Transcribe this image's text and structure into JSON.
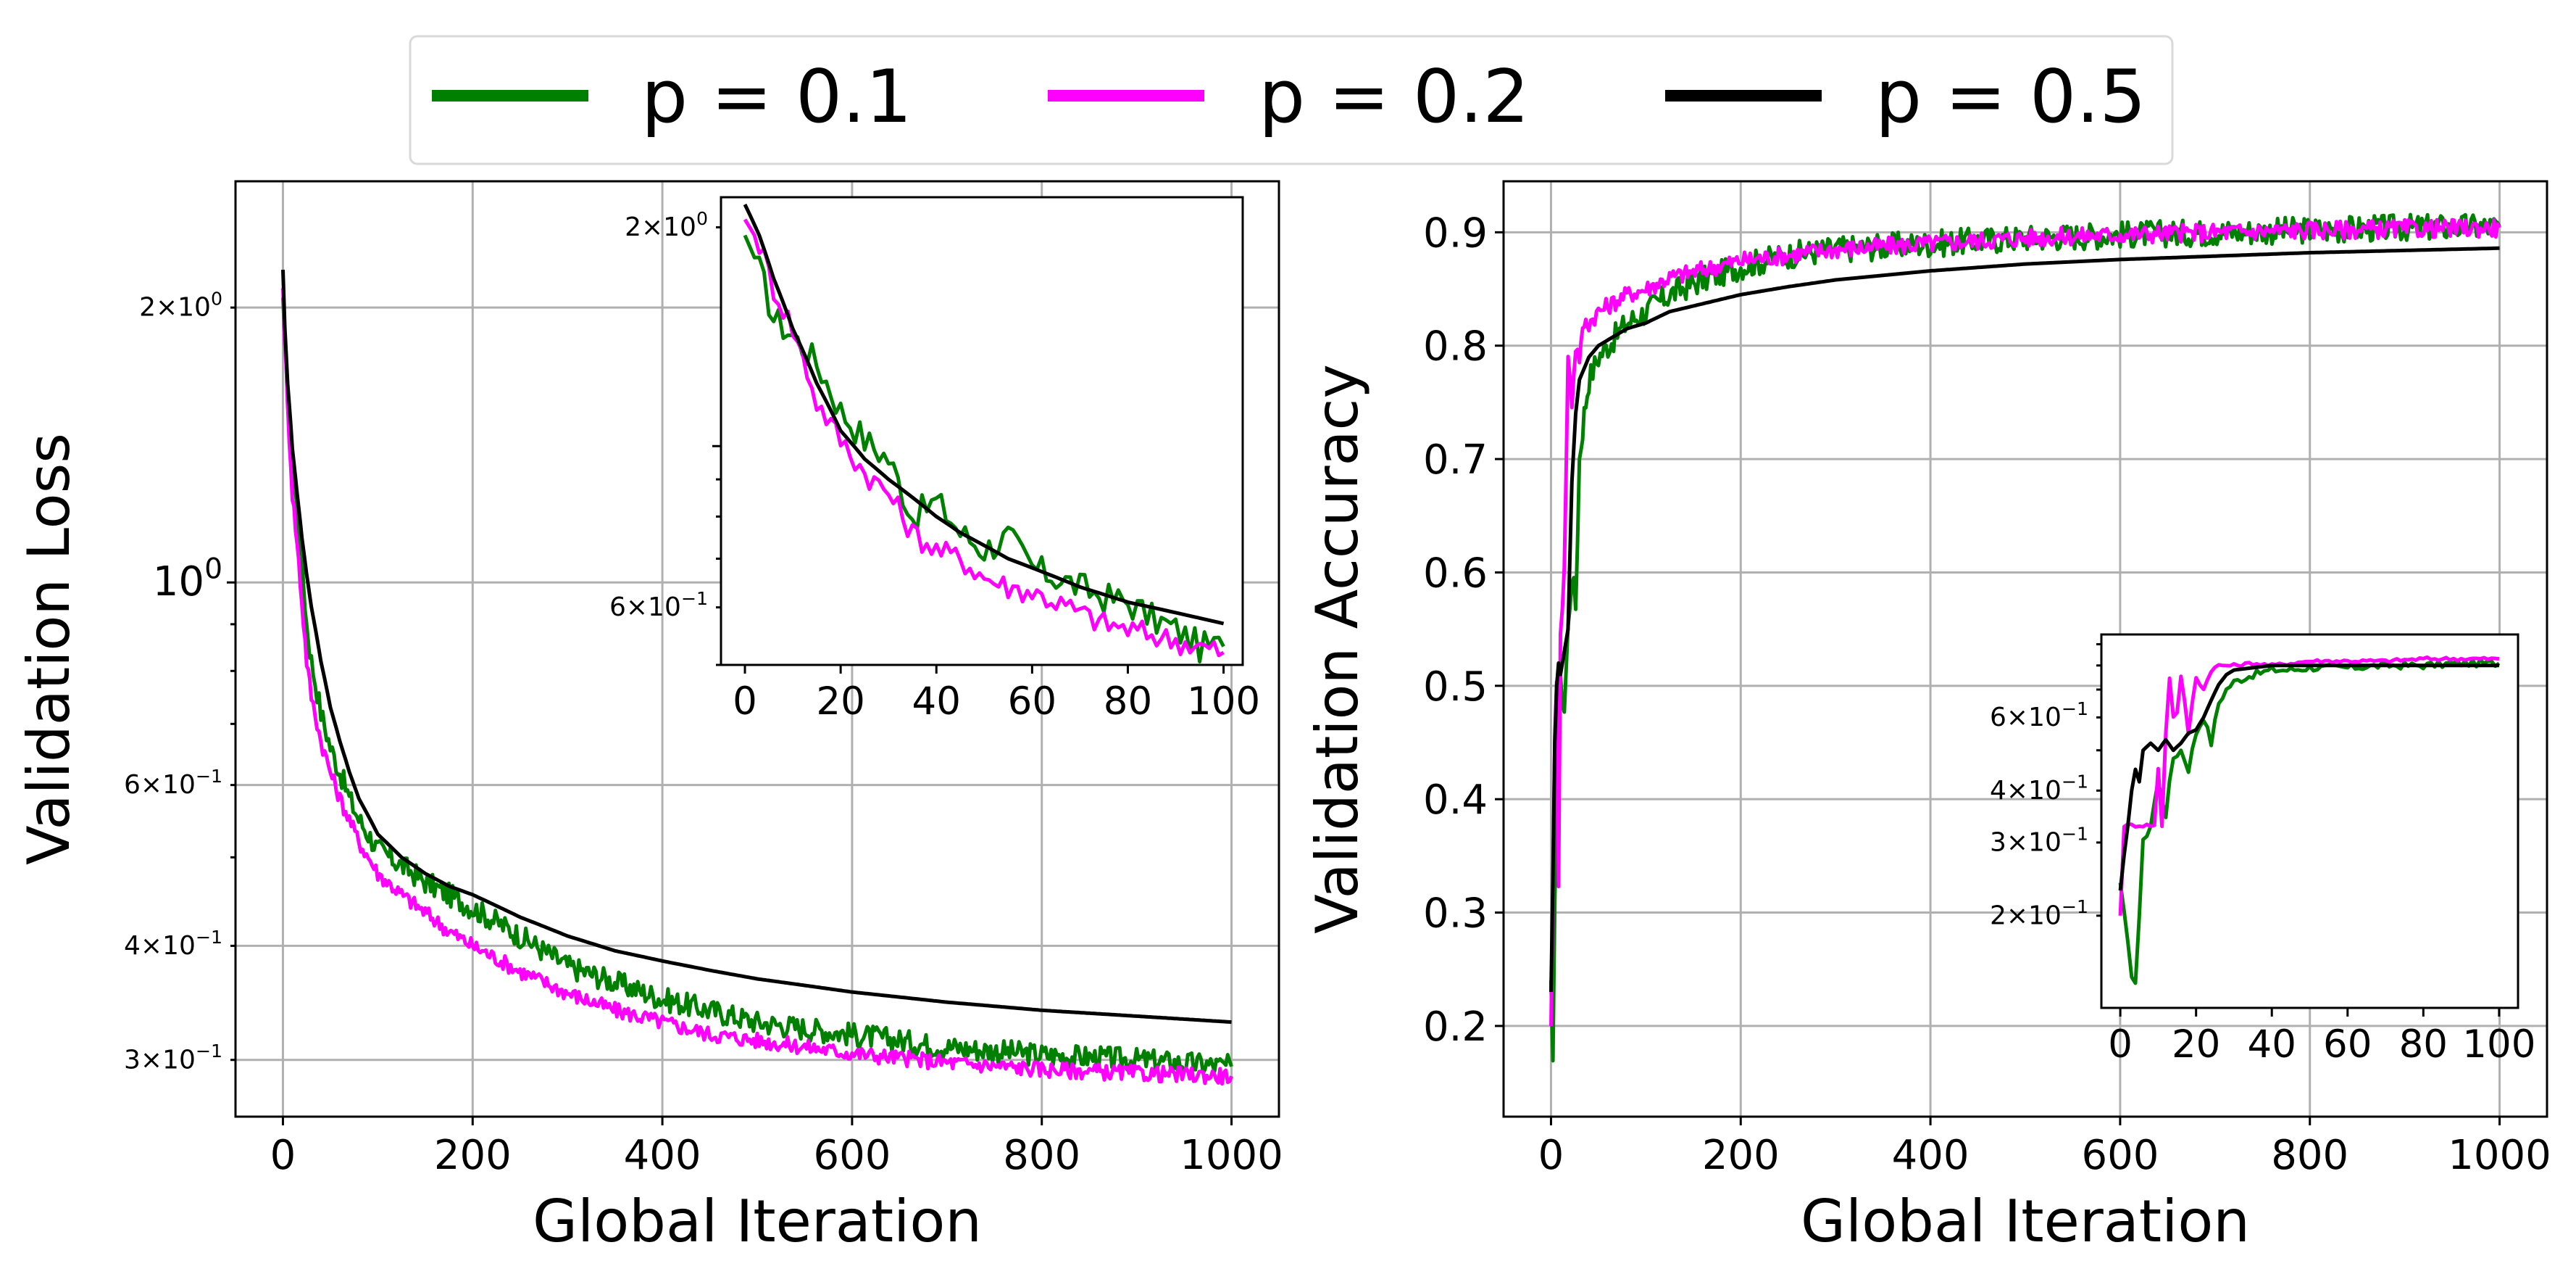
{
  "colors": {
    "p01": "#008000",
    "p02": "#ff00ff",
    "p05": "#000000",
    "grid": "#b0b0b0"
  },
  "legend": [
    {
      "label": "p = 0.1",
      "color": "#008000"
    },
    {
      "label": "p = 0.2",
      "color": "#ff00ff"
    },
    {
      "label": "p = 0.5",
      "color": "#000000"
    }
  ],
  "chart_data": [
    {
      "id": "loss",
      "type": "line",
      "xlabel": "Global Iteration",
      "ylabel": "Validation Loss",
      "yscale": "log",
      "xlim": [
        -50,
        1050
      ],
      "ylim": [
        0.26,
        2.75
      ],
      "xticks": [
        0,
        200,
        400,
        600,
        800,
        1000
      ],
      "xtick_labels": [
        "0",
        "200",
        "400",
        "600",
        "800",
        "1000"
      ],
      "yticks": [
        {
          "value": 2.0,
          "mant": "2",
          "exp": "0",
          "big": false
        },
        {
          "value": 1.0,
          "mant": "",
          "exp": "0",
          "big": true
        },
        {
          "value": 0.6,
          "mant": "6",
          "exp": "−1",
          "big": false
        },
        {
          "value": 0.4,
          "mant": "4",
          "exp": "−1",
          "big": false
        },
        {
          "value": 0.3,
          "mant": "3",
          "exp": "−1",
          "big": false
        }
      ],
      "series": [
        {
          "name": "p = 0.1",
          "color": "#008000",
          "x": [
            0,
            2,
            5,
            10,
            15,
            20,
            25,
            30,
            40,
            50,
            60,
            70,
            80,
            100,
            125,
            150,
            175,
            200,
            250,
            300,
            350,
            400,
            450,
            500,
            600,
            700,
            800,
            900,
            1000
          ],
          "y": [
            2.05,
            1.8,
            1.6,
            1.35,
            1.2,
            1.05,
            0.9,
            0.82,
            0.72,
            0.66,
            0.62,
            0.58,
            0.55,
            0.51,
            0.49,
            0.47,
            0.455,
            0.44,
            0.41,
            0.38,
            0.365,
            0.35,
            0.34,
            0.33,
            0.32,
            0.31,
            0.304,
            0.3,
            0.295
          ],
          "noise": 0.03
        },
        {
          "name": "p = 0.2",
          "color": "#ff00ff",
          "x": [
            0,
            2,
            5,
            10,
            15,
            20,
            25,
            30,
            40,
            50,
            60,
            70,
            80,
            100,
            125,
            150,
            175,
            200,
            250,
            300,
            350,
            400,
            450,
            500,
            600,
            700,
            800,
            900,
            1000
          ],
          "y": [
            2.1,
            1.85,
            1.55,
            1.25,
            1.1,
            0.95,
            0.82,
            0.75,
            0.67,
            0.62,
            0.58,
            0.55,
            0.52,
            0.48,
            0.455,
            0.435,
            0.415,
            0.4,
            0.375,
            0.355,
            0.34,
            0.33,
            0.32,
            0.315,
            0.305,
            0.298,
            0.293,
            0.29,
            0.288
          ],
          "noise": 0.02
        },
        {
          "name": "p = 0.5",
          "color": "#000000",
          "x": [
            0,
            2,
            5,
            10,
            15,
            20,
            25,
            30,
            40,
            50,
            60,
            70,
            80,
            100,
            125,
            150,
            175,
            200,
            250,
            300,
            350,
            400,
            450,
            500,
            600,
            700,
            800,
            900,
            1000
          ],
          "y": [
            2.2,
            1.9,
            1.65,
            1.4,
            1.25,
            1.12,
            1.02,
            0.94,
            0.82,
            0.73,
            0.67,
            0.62,
            0.58,
            0.53,
            0.5,
            0.48,
            0.465,
            0.455,
            0.43,
            0.41,
            0.395,
            0.385,
            0.376,
            0.368,
            0.356,
            0.347,
            0.34,
            0.335,
            0.33
          ],
          "noise": 0
        }
      ]
    },
    {
      "id": "loss-inset",
      "type": "line",
      "yscale": "log",
      "xlim": [
        -5,
        104
      ],
      "ylim": [
        0.5,
        2.2
      ],
      "xticks": [
        0,
        20,
        40,
        60,
        80,
        100
      ],
      "xtick_labels": [
        "0",
        "20",
        "40",
        "60",
        "80",
        "100"
      ],
      "yticks": [
        {
          "value": 2.0,
          "mant": "2",
          "exp": "0",
          "big": false
        },
        {
          "value": 0.6,
          "mant": "6",
          "exp": "−1",
          "big": false
        }
      ],
      "series": [
        {
          "name": "p = 0.1",
          "color": "#008000",
          "x": [
            0,
            3,
            6,
            10,
            15,
            20,
            25,
            30,
            35,
            40,
            45,
            50,
            55,
            60,
            65,
            70,
            75,
            80,
            85,
            90,
            95,
            100
          ],
          "y": [
            1.95,
            1.75,
            1.5,
            1.42,
            1.3,
            1.12,
            1.02,
            0.96,
            0.8,
            0.84,
            0.76,
            0.72,
            0.75,
            0.68,
            0.66,
            0.64,
            0.62,
            0.61,
            0.58,
            0.56,
            0.53,
            0.53
          ],
          "noise": 0.05
        },
        {
          "name": "p = 0.2",
          "color": "#ff00ff",
          "x": [
            0,
            3,
            6,
            10,
            15,
            20,
            25,
            30,
            35,
            40,
            45,
            50,
            55,
            60,
            65,
            70,
            75,
            80,
            85,
            90,
            95,
            100
          ],
          "y": [
            2.05,
            1.9,
            1.65,
            1.45,
            1.15,
            1.02,
            0.92,
            0.86,
            0.76,
            0.72,
            0.7,
            0.66,
            0.64,
            0.63,
            0.61,
            0.59,
            0.57,
            0.56,
            0.55,
            0.54,
            0.53,
            0.52
          ],
          "noise": 0.04
        },
        {
          "name": "p = 0.5",
          "color": "#000000",
          "x": [
            0,
            3,
            6,
            10,
            15,
            20,
            25,
            30,
            35,
            40,
            45,
            50,
            55,
            60,
            65,
            70,
            75,
            80,
            85,
            90,
            95,
            100
          ],
          "y": [
            2.15,
            1.95,
            1.7,
            1.45,
            1.22,
            1.05,
            0.96,
            0.9,
            0.85,
            0.8,
            0.76,
            0.73,
            0.7,
            0.68,
            0.66,
            0.64,
            0.625,
            0.61,
            0.6,
            0.59,
            0.58,
            0.57
          ],
          "noise": 0
        }
      ]
    },
    {
      "id": "accuracy",
      "type": "line",
      "xlabel": "Global Iteration",
      "ylabel": "Validation Accuracy",
      "yscale": "linear",
      "xlim": [
        -50,
        1050
      ],
      "ylim": [
        0.12,
        0.945
      ],
      "xticks": [
        0,
        200,
        400,
        600,
        800,
        1000
      ],
      "xtick_labels": [
        "0",
        "200",
        "400",
        "600",
        "800",
        "1000"
      ],
      "yticks": [
        0.2,
        0.3,
        0.4,
        0.5,
        0.6,
        0.7,
        0.8,
        0.9
      ],
      "ytick_labels": [
        "0.2",
        "0.3",
        "0.4",
        "0.5",
        "0.6",
        "0.7",
        "0.8",
        "0.9"
      ],
      "series": [
        {
          "name": "p = 0.1",
          "color": "#008000",
          "x": [
            0,
            2,
            4,
            6,
            8,
            10,
            14,
            18,
            22,
            26,
            30,
            35,
            40,
            50,
            60,
            70,
            80,
            100,
            125,
            150,
            200,
            250,
            300,
            400,
            500,
            600,
            700,
            800,
            900,
            1000
          ],
          "y": [
            0.24,
            0.16,
            0.3,
            0.42,
            0.45,
            0.5,
            0.48,
            0.55,
            0.6,
            0.57,
            0.7,
            0.74,
            0.77,
            0.79,
            0.8,
            0.81,
            0.82,
            0.83,
            0.845,
            0.855,
            0.87,
            0.88,
            0.885,
            0.89,
            0.895,
            0.898,
            0.9,
            0.902,
            0.904,
            0.905
          ],
          "noise": 0.012
        },
        {
          "name": "p = 0.2",
          "color": "#ff00ff",
          "x": [
            0,
            2,
            4,
            6,
            8,
            10,
            14,
            18,
            22,
            26,
            30,
            35,
            40,
            50,
            60,
            70,
            80,
            100,
            125,
            150,
            200,
            250,
            300,
            400,
            500,
            600,
            700,
            800,
            900,
            1000
          ],
          "y": [
            0.2,
            0.33,
            0.45,
            0.5,
            0.33,
            0.55,
            0.6,
            0.79,
            0.75,
            0.8,
            0.79,
            0.82,
            0.82,
            0.83,
            0.835,
            0.84,
            0.845,
            0.85,
            0.86,
            0.865,
            0.875,
            0.88,
            0.885,
            0.89,
            0.895,
            0.898,
            0.9,
            0.902,
            0.903,
            0.904
          ],
          "noise": 0.008
        },
        {
          "name": "p = 0.5",
          "color": "#000000",
          "x": [
            0,
            2,
            4,
            6,
            8,
            10,
            14,
            18,
            22,
            26,
            30,
            35,
            40,
            50,
            60,
            70,
            80,
            100,
            125,
            150,
            200,
            250,
            300,
            400,
            500,
            600,
            700,
            800,
            900,
            1000
          ],
          "y": [
            0.23,
            0.33,
            0.45,
            0.5,
            0.52,
            0.51,
            0.53,
            0.55,
            0.68,
            0.74,
            0.77,
            0.78,
            0.79,
            0.8,
            0.805,
            0.81,
            0.815,
            0.82,
            0.83,
            0.835,
            0.845,
            0.852,
            0.858,
            0.866,
            0.872,
            0.876,
            0.879,
            0.882,
            0.884,
            0.886
          ],
          "noise": 0
        }
      ]
    },
    {
      "id": "accuracy-inset",
      "type": "line",
      "yscale": "log",
      "xlim": [
        -5,
        105
      ],
      "ylim": [
        0.12,
        0.95
      ],
      "xticks": [
        0,
        20,
        40,
        60,
        80,
        100
      ],
      "xtick_labels": [
        "0",
        "20",
        "40",
        "60",
        "80",
        "100"
      ],
      "yticks": [
        {
          "value": 0.6,
          "mant": "6",
          "exp": "−1",
          "big": false
        },
        {
          "value": 0.4,
          "mant": "4",
          "exp": "−1",
          "big": false
        },
        {
          "value": 0.3,
          "mant": "3",
          "exp": "−1",
          "big": false
        },
        {
          "value": 0.2,
          "mant": "2",
          "exp": "−1",
          "big": false
        }
      ],
      "series": [
        {
          "name": "p = 0.1",
          "color": "#008000",
          "x": [
            0,
            2,
            3,
            4,
            5,
            6,
            8,
            10,
            12,
            14,
            16,
            18,
            20,
            22,
            24,
            26,
            28,
            30,
            35,
            40,
            45,
            50,
            60,
            70,
            80,
            90,
            100
          ],
          "y": [
            0.24,
            0.17,
            0.14,
            0.14,
            0.2,
            0.3,
            0.33,
            0.42,
            0.35,
            0.48,
            0.5,
            0.45,
            0.55,
            0.6,
            0.52,
            0.65,
            0.7,
            0.73,
            0.76,
            0.78,
            0.78,
            0.79,
            0.79,
            0.8,
            0.8,
            0.81,
            0.81
          ],
          "noise": 0.02
        },
        {
          "name": "p = 0.2",
          "color": "#ff00ff",
          "x": [
            0,
            1,
            2,
            3,
            5,
            7,
            9,
            10,
            11,
            12,
            13,
            14,
            15,
            16,
            18,
            20,
            22,
            24,
            26,
            30,
            35,
            40,
            50,
            60,
            70,
            80,
            90,
            100
          ],
          "y": [
            0.2,
            0.33,
            0.33,
            0.33,
            0.33,
            0.33,
            0.33,
            0.45,
            0.33,
            0.55,
            0.75,
            0.6,
            0.62,
            0.75,
            0.55,
            0.75,
            0.7,
            0.78,
            0.8,
            0.8,
            0.81,
            0.8,
            0.82,
            0.82,
            0.82,
            0.83,
            0.83,
            0.83
          ],
          "noise": 0.01
        },
        {
          "name": "p = 0.5",
          "color": "#000000",
          "x": [
            0,
            1,
            2,
            3,
            4,
            5,
            6,
            8,
            10,
            12,
            14,
            16,
            18,
            20,
            22,
            24,
            26,
            28,
            30,
            35,
            40,
            50,
            60,
            70,
            80,
            90,
            100
          ],
          "y": [
            0.23,
            0.28,
            0.33,
            0.4,
            0.45,
            0.42,
            0.5,
            0.52,
            0.5,
            0.53,
            0.5,
            0.52,
            0.55,
            0.56,
            0.6,
            0.66,
            0.72,
            0.76,
            0.78,
            0.79,
            0.8,
            0.8,
            0.8,
            0.8,
            0.8,
            0.8,
            0.8
          ],
          "noise": 0
        }
      ]
    }
  ]
}
